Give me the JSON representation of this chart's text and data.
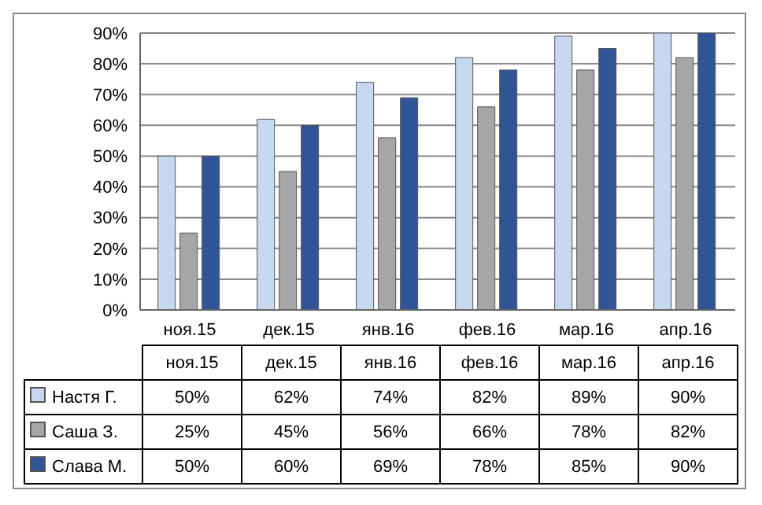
{
  "chart_data": {
    "type": "bar",
    "categories": [
      "ноя.15",
      "дек.15",
      "янв.16",
      "фев.16",
      "мар.16",
      "апр.16"
    ],
    "series": [
      {
        "name": "Настя Г.",
        "color": "#c6d9f1",
        "values": [
          50,
          62,
          74,
          82,
          89,
          90
        ],
        "value_labels": [
          "50%",
          "62%",
          "74%",
          "82%",
          "89%",
          "90%"
        ]
      },
      {
        "name": "Саша З.",
        "color": "#a6a6a6",
        "values": [
          25,
          45,
          56,
          66,
          78,
          82
        ],
        "value_labels": [
          "25%",
          "45%",
          "56%",
          "66%",
          "78%",
          "82%"
        ]
      },
      {
        "name": "Слава М.",
        "color": "#2f5597",
        "values": [
          50,
          60,
          69,
          78,
          85,
          90
        ],
        "value_labels": [
          "50%",
          "60%",
          "69%",
          "78%",
          "85%",
          "90%"
        ]
      }
    ],
    "ylim": [
      0,
      90
    ],
    "yticks": [
      {
        "value": 0,
        "label": "0%"
      },
      {
        "value": 10,
        "label": "10%"
      },
      {
        "value": 20,
        "label": "20%"
      },
      {
        "value": 30,
        "label": "30%"
      },
      {
        "value": 40,
        "label": "40%"
      },
      {
        "value": 50,
        "label": "50%"
      },
      {
        "value": 60,
        "label": "60%"
      },
      {
        "value": 70,
        "label": "70%"
      },
      {
        "value": 80,
        "label": "80%"
      },
      {
        "value": 90,
        "label": "90%"
      }
    ],
    "grid": "y",
    "legend": "bottom"
  }
}
